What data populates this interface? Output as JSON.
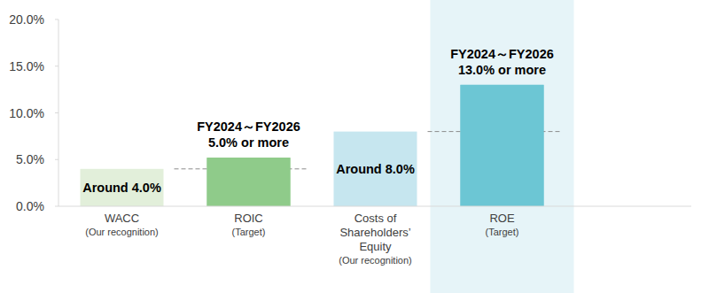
{
  "chart_data": {
    "type": "bar",
    "categories": [
      "WACC",
      "ROIC",
      "Costs of Shareholders’ Equity",
      "ROE"
    ],
    "category_subtitles": [
      "(Our recognition)",
      "(Target)",
      "(Our recognition)",
      "(Target)"
    ],
    "values": [
      4.0,
      5.2,
      8.0,
      13.0
    ],
    "colors": [
      "#e2efda",
      "#8fcb8a",
      "#c6e6ef",
      "#6cc6d4"
    ],
    "annotations": [
      [
        "Around 4.0%"
      ],
      [
        "FY2024～FY2026",
        "5.0% or more"
      ],
      [
        "Around 8.0%"
      ],
      [
        "FY2024～FY2026",
        "13.0% or more"
      ]
    ],
    "ylim": [
      0,
      20
    ],
    "yticks": [
      {
        "value": 0,
        "label": "0.0%"
      },
      {
        "value": 5,
        "label": "5.0%"
      },
      {
        "value": 10,
        "label": "10.0%"
      },
      {
        "value": 15,
        "label": "15.0%"
      },
      {
        "value": 20,
        "label": "20.0%"
      }
    ],
    "grid": false
  }
}
